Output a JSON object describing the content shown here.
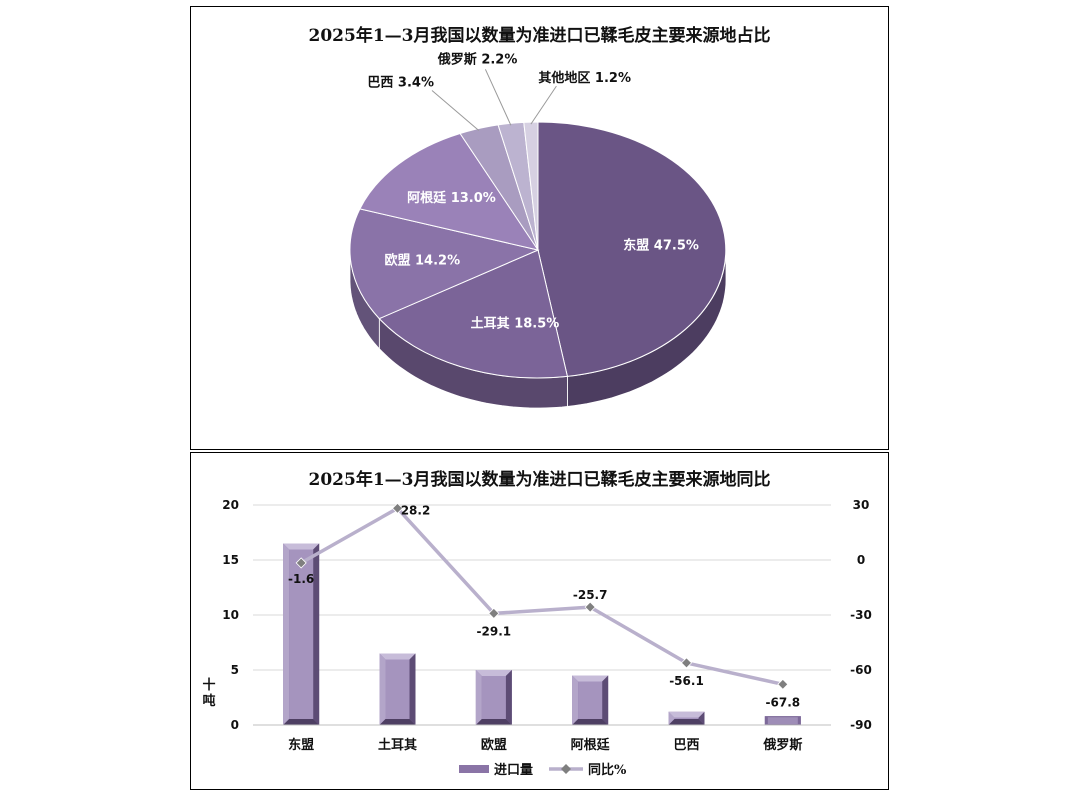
{
  "chart_data": [
    {
      "type": "pie",
      "title": "2025年1—3月我国以数量为准进口已鞣毛皮主要来源地占比",
      "categories": [
        "东盟",
        "土耳其",
        "欧盟",
        "阿根廷",
        "巴西",
        "俄罗斯",
        "其他地区"
      ],
      "values": [
        47.5,
        18.5,
        14.2,
        13.0,
        3.4,
        2.2,
        1.2
      ],
      "unit": "%",
      "colors": [
        "#6a5585",
        "#7b6498",
        "#8a73a8",
        "#9a82b8",
        "#a99cc0",
        "#bcb3d0",
        "#d6d0e2"
      ],
      "labels": [
        "东盟 47.5%",
        "土耳其 18.5%",
        "欧盟 14.2%",
        "阿根廷 13.0%",
        "巴西 3.4%",
        "俄罗斯 2.2%",
        "其他地区 1.2%"
      ],
      "style": "3d"
    },
    {
      "type": "bar+line",
      "title": "2025年1—3月我国以数量为准进口已鞣毛皮主要来源地同比",
      "categories": [
        "东盟",
        "土耳其",
        "欧盟",
        "阿根廷",
        "巴西",
        "俄罗斯"
      ],
      "series": [
        {
          "name": "进口量",
          "type": "bar",
          "axis": "left",
          "values": [
            16.5,
            6.5,
            5.0,
            4.5,
            1.2,
            0.8
          ],
          "color": "#8a74a6"
        },
        {
          "name": "同比%",
          "type": "line",
          "axis": "right",
          "values": [
            -1.6,
            28.2,
            -29.1,
            -25.7,
            -56.1,
            -67.8
          ],
          "color": "#b9b0cc"
        }
      ],
      "data_labels": [
        "-1.6",
        "28.2",
        "-29.1",
        "-25.7",
        "-56.1",
        "-67.8"
      ],
      "ylabel": "十吨",
      "ylim": [
        0,
        20
      ],
      "yticks": [
        "0",
        "5",
        "10",
        "15",
        "20"
      ],
      "y2lim": [
        -90,
        30
      ],
      "y2ticks": [
        "-90",
        "-60",
        "-30",
        "0",
        "30"
      ],
      "grid": true,
      "legend": "bottom"
    }
  ]
}
